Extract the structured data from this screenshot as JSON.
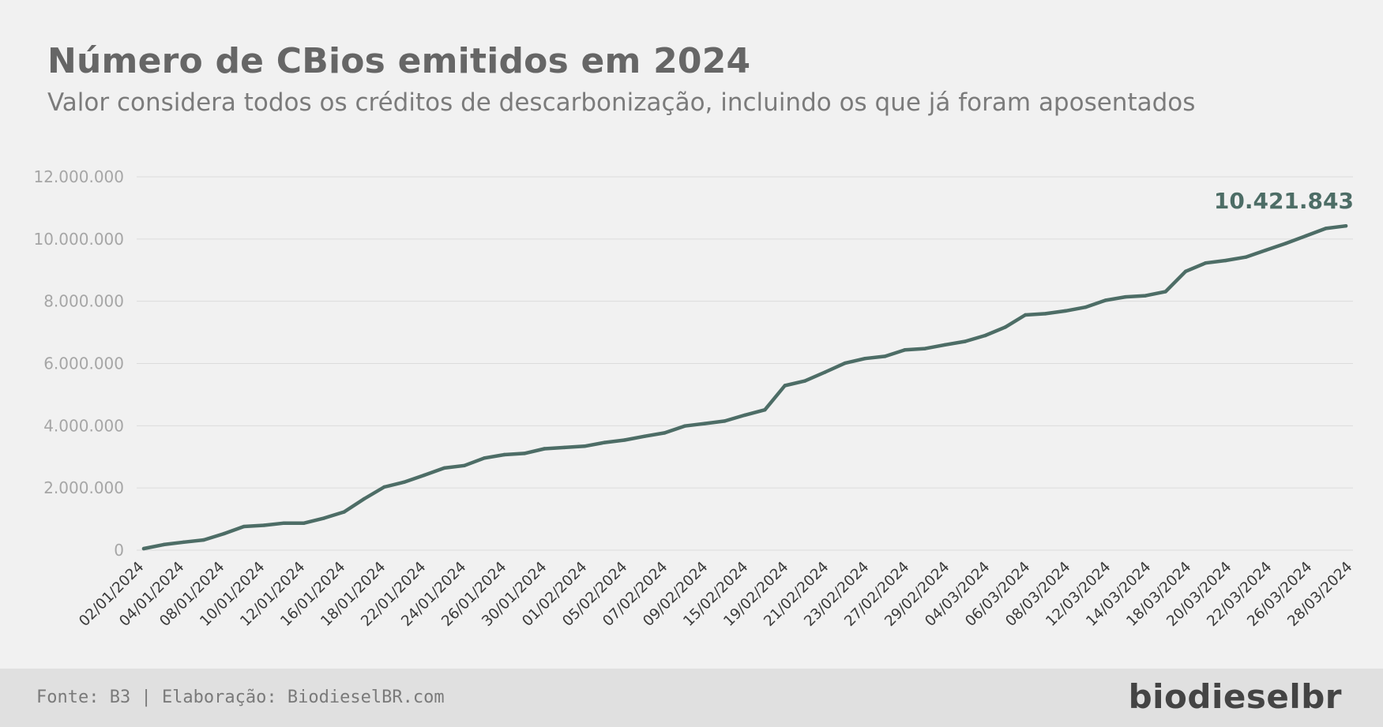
{
  "header": {
    "title": "Número de CBios emitidos em 2024",
    "subtitle": "Valor considera todos os créditos de descarbonização, incluindo os que já foram aposentados"
  },
  "footer": {
    "source": "Fonte: B3 | Elaboração: BiodieselBR.com",
    "logo": "biodieselbr"
  },
  "colors": {
    "line": "#4d6d66",
    "grid": "#dcdcdc",
    "tick_text": "#a6a6a6",
    "axis_text": "#3a3a3a"
  },
  "chart_data": {
    "type": "line",
    "title": "Número de CBios emitidos em 2024",
    "subtitle": "Valor considera todos os créditos de descarbonização, incluindo os que já foram aposentados",
    "xlabel": "",
    "ylabel": "",
    "ylim": [
      0,
      12000000
    ],
    "yticks": [
      0,
      2000000,
      4000000,
      6000000,
      8000000,
      10000000,
      12000000
    ],
    "ytick_labels": [
      "0",
      "2.000.000",
      "4.000.000",
      "6.000.000",
      "8.000.000",
      "10.000.000",
      "12.000.000"
    ],
    "grid": true,
    "legend": "none",
    "x_labels": [
      "02/01/2024",
      "04/01/2024",
      "08/01/2024",
      "10/01/2024",
      "12/01/2024",
      "16/01/2024",
      "18/01/2024",
      "22/01/2024",
      "24/01/2024",
      "26/01/2024",
      "30/01/2024",
      "01/02/2024",
      "05/02/2024",
      "07/02/2024",
      "09/02/2024",
      "15/02/2024",
      "19/02/2024",
      "21/02/2024",
      "23/02/2024",
      "27/02/2024",
      "29/02/2024",
      "04/03/2024",
      "06/03/2024",
      "08/03/2024",
      "12/03/2024",
      "14/03/2024",
      "18/03/2024",
      "20/03/2024",
      "22/03/2024",
      "26/03/2024",
      "28/03/2024"
    ],
    "series": [
      {
        "values": [
          50000,
          180000,
          260000,
          330000,
          530000,
          760000,
          800000,
          870000,
          870000,
          1030000,
          1230000,
          1650000,
          2030000,
          2190000,
          2410000,
          2640000,
          2720000,
          2960000,
          3070000,
          3110000,
          3260000,
          3300000,
          3340000,
          3460000,
          3540000,
          3660000,
          3770000,
          3990000,
          4070000,
          4150000,
          4340000,
          4510000,
          5290000,
          5440000,
          5720000,
          6010000,
          6160000,
          6230000,
          6440000,
          6480000,
          6600000,
          6710000,
          6900000,
          7170000,
          7560000,
          7600000,
          7690000,
          7810000,
          8030000,
          8140000,
          8180000,
          8310000,
          8960000,
          9230000,
          9310000,
          9420000,
          9640000,
          9860000,
          10100000,
          10340000,
          10421843
        ]
      }
    ],
    "annotations": [
      {
        "text": "10.421.843",
        "index": "last"
      }
    ]
  }
}
